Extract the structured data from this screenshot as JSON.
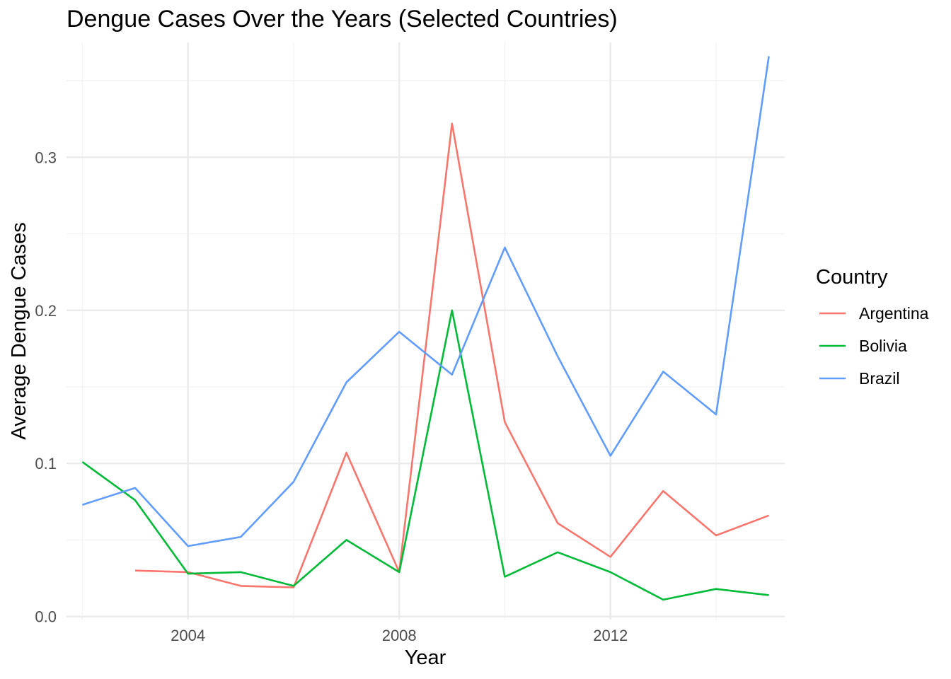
{
  "chart_data": {
    "type": "line",
    "title": "Dengue Cases Over the Years (Selected Countries)",
    "xlabel": "Year",
    "ylabel": "Average Dengue Cases",
    "xlim": [
      2001.7,
      2015.3
    ],
    "ylim": [
      -0.002,
      0.375
    ],
    "x_ticks": [
      2004,
      2008,
      2012
    ],
    "x_tick_labels": [
      "2004",
      "2008",
      "2012"
    ],
    "x_minor_ticks": [
      2002,
      2006,
      2010,
      2014
    ],
    "y_ticks": [
      0,
      0.1,
      0.2,
      0.3
    ],
    "y_tick_labels": [
      "0.0",
      "0.1",
      "0.2",
      "0.3"
    ],
    "y_minor_ticks": [
      0.05,
      0.15,
      0.25,
      0.35
    ],
    "grid": true,
    "legend": {
      "title": "Country",
      "position": "right"
    },
    "series": [
      {
        "name": "Argentina",
        "color": "#F8766D",
        "x": [
          2003,
          2004,
          2005,
          2006,
          2007,
          2008,
          2009,
          2010,
          2011,
          2012,
          2013,
          2014,
          2015
        ],
        "values": [
          0.03,
          0.029,
          0.02,
          0.019,
          0.107,
          0.029,
          0.322,
          0.127,
          0.061,
          0.039,
          0.082,
          0.053,
          0.066
        ]
      },
      {
        "name": "Bolivia",
        "color": "#00BA38",
        "x": [
          2002,
          2003,
          2004,
          2005,
          2006,
          2007,
          2008,
          2009,
          2010,
          2011,
          2012,
          2013,
          2014,
          2015
        ],
        "values": [
          0.101,
          0.076,
          0.028,
          0.029,
          0.02,
          0.05,
          0.029,
          0.2,
          0.026,
          0.042,
          0.029,
          0.011,
          0.018,
          0.014
        ]
      },
      {
        "name": "Brazil",
        "color": "#619CFF",
        "x": [
          2002,
          2003,
          2004,
          2005,
          2006,
          2007,
          2008,
          2009,
          2010,
          2011,
          2012,
          2013,
          2014,
          2015
        ],
        "values": [
          0.073,
          0.084,
          0.046,
          0.052,
          0.088,
          0.153,
          0.186,
          0.158,
          0.241,
          0.17,
          0.105,
          0.16,
          0.132,
          0.366
        ]
      }
    ]
  }
}
